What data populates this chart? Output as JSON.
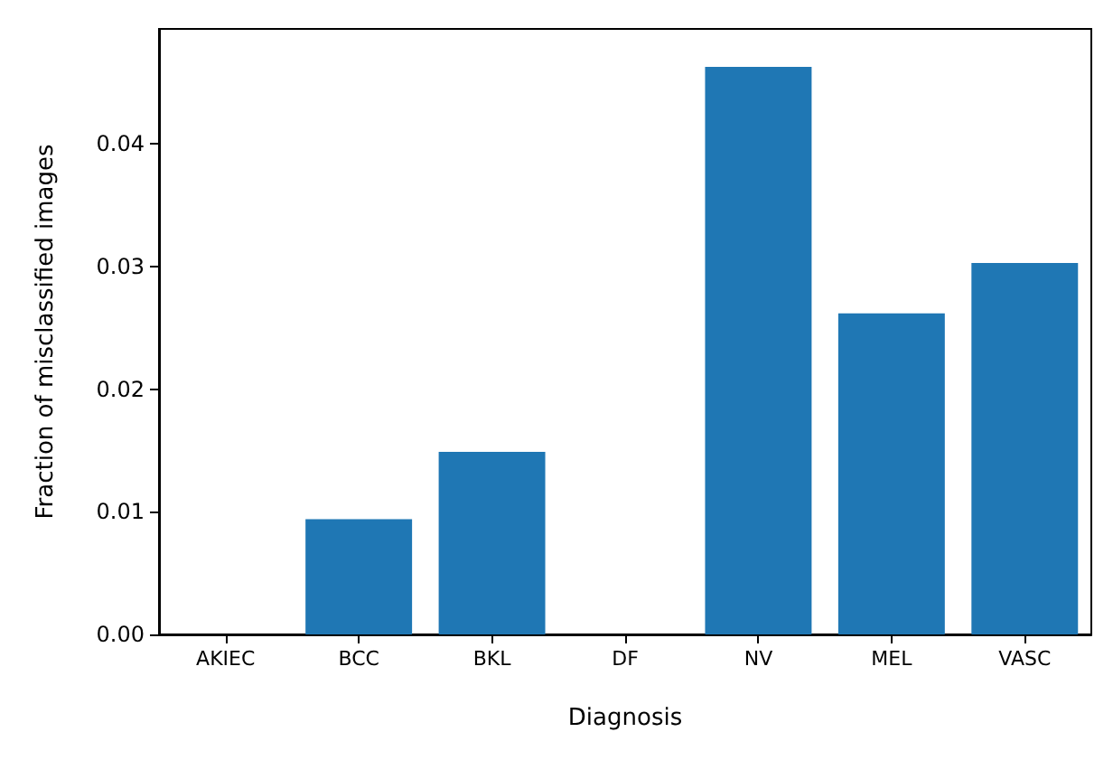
{
  "chart_data": {
    "type": "bar",
    "xlabel": "Diagnosis",
    "ylabel": "Fraction of misclassified images",
    "categories": [
      "AKIEC",
      "BCC",
      "BKL",
      "DF",
      "NV",
      "MEL",
      "VASC"
    ],
    "values": [
      0,
      0.0094,
      0.0149,
      0,
      0.0463,
      0.0262,
      0.0303
    ],
    "color": "#1f77b4",
    "ylim": [
      0,
      0.0494
    ],
    "yticks": [
      {
        "value": 0,
        "label": "0.00"
      },
      {
        "value": 0.01,
        "label": "0.01"
      },
      {
        "value": 0.02,
        "label": "0.02"
      },
      {
        "value": 0.03,
        "label": "0.03"
      },
      {
        "value": 0.04,
        "label": "0.04"
      }
    ],
    "grid": false
  }
}
